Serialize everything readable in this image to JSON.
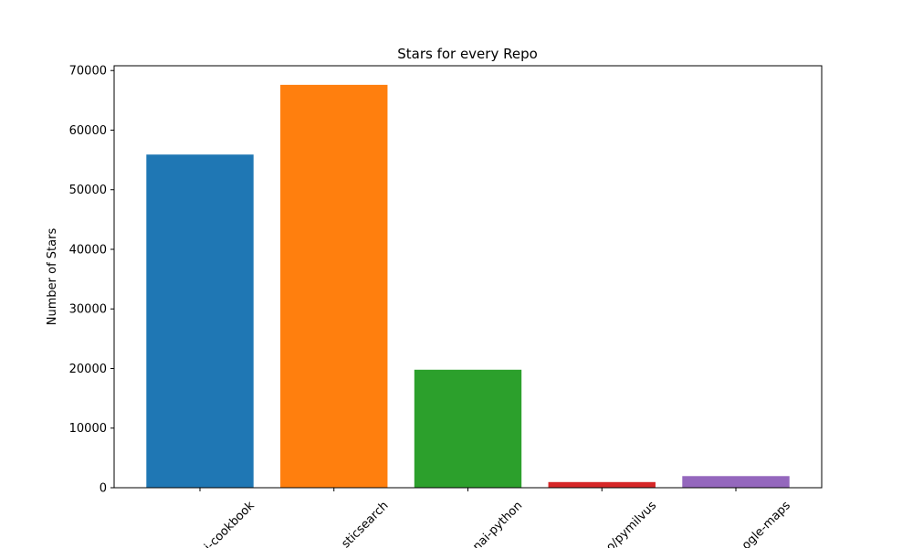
{
  "chart_data": {
    "type": "bar",
    "title": "Stars for every Repo",
    "xlabel": "",
    "ylabel": "Number of Stars",
    "categories": [
      "i-cookbook",
      "sticsearch",
      "nai-python",
      "o/pymilvus",
      "ogle-maps"
    ],
    "values": [
      55900,
      67600,
      19800,
      950,
      1950
    ],
    "colors": [
      "#1f77b4",
      "#ff7f0e",
      "#2ca02c",
      "#d62728",
      "#9467bd"
    ],
    "ylim": [
      0,
      70800
    ],
    "yticks": [
      0,
      10000,
      20000,
      30000,
      40000,
      50000,
      60000,
      70000
    ],
    "grid": false,
    "x_tick_rotation": 45
  }
}
